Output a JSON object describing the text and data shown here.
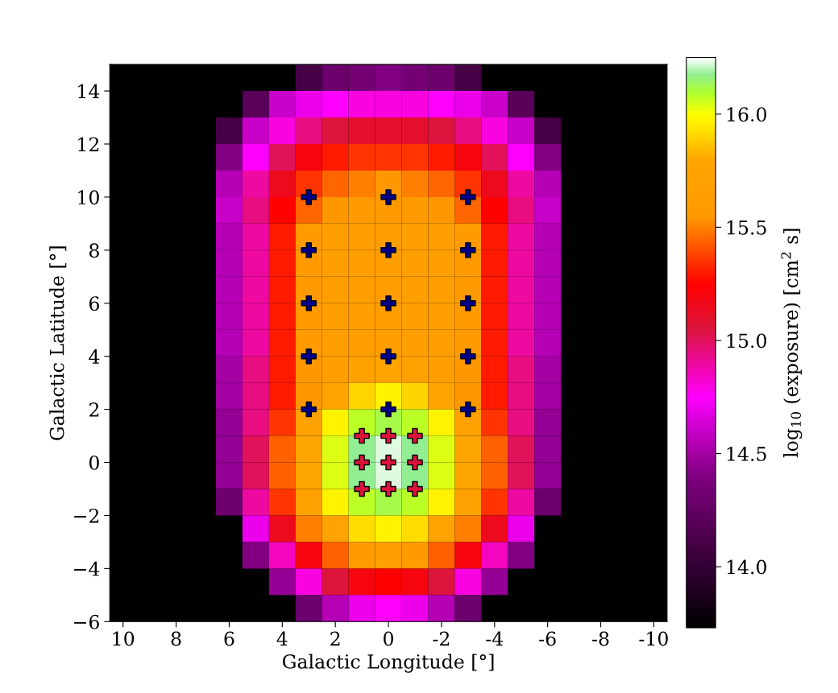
{
  "chart_data": {
    "type": "heatmap",
    "xlabel": "Galactic Longitude [°]",
    "ylabel": "Galactic Latitude [°]",
    "clabel": "log$_{10}$ (exposure) [cm$^{2}$ s]",
    "x": [
      10,
      9,
      8,
      7,
      6,
      5,
      4,
      3,
      2,
      1,
      0,
      -1,
      -2,
      -3,
      -4,
      -5,
      -6,
      -7,
      -8,
      -9,
      -10
    ],
    "y": [
      14.5,
      13.5,
      12.5,
      11.5,
      10.5,
      9.5,
      8.5,
      7.5,
      6.5,
      5.5,
      4.5,
      3.5,
      2.5,
      1.5,
      0.5,
      -0.5,
      -1.5,
      -2.5,
      -3.5,
      -4.5,
      -5.5
    ],
    "cells": [
      [
        null,
        null,
        null,
        null,
        null,
        null,
        null,
        14.1,
        14.3,
        14.35,
        14.4,
        14.35,
        14.3,
        14.1,
        null,
        null,
        null,
        null,
        null,
        null,
        null
      ],
      [
        null,
        null,
        null,
        null,
        null,
        14.2,
        14.6,
        14.7,
        14.75,
        14.8,
        14.8,
        14.8,
        14.75,
        14.7,
        14.6,
        14.2,
        null,
        null,
        null,
        null,
        null
      ],
      [
        null,
        null,
        null,
        null,
        14.1,
        14.6,
        14.8,
        14.95,
        15.05,
        15.1,
        15.1,
        15.1,
        15.05,
        14.95,
        14.8,
        14.6,
        14.1,
        null,
        null,
        null,
        null
      ],
      [
        null,
        null,
        null,
        null,
        14.4,
        14.75,
        15.0,
        15.2,
        15.3,
        15.35,
        15.35,
        15.35,
        15.3,
        15.2,
        15.0,
        14.75,
        14.4,
        null,
        null,
        null,
        null
      ],
      [
        null,
        null,
        null,
        null,
        14.55,
        14.9,
        15.15,
        15.35,
        15.45,
        15.5,
        15.55,
        15.5,
        15.45,
        15.35,
        15.15,
        14.9,
        14.55,
        null,
        null,
        null,
        null
      ],
      [
        null,
        null,
        null,
        null,
        14.6,
        14.95,
        15.25,
        15.45,
        15.55,
        15.6,
        15.6,
        15.6,
        15.55,
        15.45,
        15.25,
        14.95,
        14.6,
        null,
        null,
        null,
        null
      ],
      [
        null,
        null,
        null,
        null,
        14.55,
        14.9,
        15.3,
        15.6,
        15.65,
        15.65,
        15.65,
        15.65,
        15.65,
        15.6,
        15.3,
        14.9,
        14.55,
        null,
        null,
        null,
        null
      ],
      [
        null,
        null,
        null,
        null,
        14.55,
        14.9,
        15.3,
        15.6,
        15.65,
        15.65,
        15.65,
        15.65,
        15.65,
        15.6,
        15.3,
        14.9,
        14.55,
        null,
        null,
        null,
        null
      ],
      [
        null,
        null,
        null,
        null,
        14.55,
        14.9,
        15.3,
        15.6,
        15.65,
        15.65,
        15.65,
        15.65,
        15.65,
        15.6,
        15.3,
        14.9,
        14.55,
        null,
        null,
        null,
        null
      ],
      [
        null,
        null,
        null,
        null,
        14.55,
        14.9,
        15.3,
        15.6,
        15.65,
        15.65,
        15.65,
        15.65,
        15.65,
        15.6,
        15.3,
        14.9,
        14.55,
        null,
        null,
        null,
        null
      ],
      [
        null,
        null,
        null,
        null,
        14.55,
        14.9,
        15.3,
        15.6,
        15.65,
        15.65,
        15.65,
        15.65,
        15.65,
        15.6,
        15.3,
        14.9,
        14.55,
        null,
        null,
        null,
        null
      ],
      [
        null,
        null,
        null,
        null,
        14.5,
        14.95,
        15.3,
        15.55,
        15.65,
        15.7,
        15.75,
        15.7,
        15.65,
        15.55,
        15.3,
        14.95,
        14.5,
        null,
        null,
        null,
        null
      ],
      [
        null,
        null,
        null,
        null,
        14.5,
        14.95,
        15.3,
        15.55,
        15.75,
        15.9,
        15.97,
        15.9,
        15.75,
        15.55,
        15.3,
        14.95,
        14.5,
        null,
        null,
        null,
        null
      ],
      [
        null,
        null,
        null,
        null,
        14.45,
        14.95,
        15.35,
        15.7,
        15.97,
        16.08,
        16.12,
        16.08,
        15.97,
        15.7,
        15.35,
        14.95,
        14.45,
        null,
        null,
        null,
        null
      ],
      [
        null,
        null,
        null,
        null,
        14.45,
        15.0,
        15.44,
        15.79,
        16.04,
        16.18,
        16.23,
        16.18,
        16.04,
        15.79,
        15.44,
        15.0,
        14.45,
        null,
        null,
        null,
        null
      ],
      [
        null,
        null,
        null,
        null,
        14.45,
        15.0,
        15.44,
        15.79,
        16.04,
        16.18,
        16.23,
        16.18,
        16.04,
        15.79,
        15.44,
        15.0,
        14.45,
        null,
        null,
        null,
        null
      ],
      [
        null,
        null,
        null,
        null,
        14.3,
        14.9,
        15.35,
        15.7,
        15.97,
        16.08,
        16.12,
        16.08,
        15.97,
        15.7,
        15.35,
        14.9,
        14.3,
        null,
        null,
        null,
        null
      ],
      [
        null,
        null,
        null,
        null,
        null,
        14.7,
        15.15,
        15.5,
        15.75,
        15.92,
        15.97,
        15.92,
        15.75,
        15.5,
        15.15,
        14.7,
        null,
        null,
        null,
        null,
        null
      ],
      [
        null,
        null,
        null,
        null,
        null,
        14.4,
        14.85,
        15.2,
        15.44,
        15.6,
        15.65,
        15.6,
        15.44,
        15.2,
        14.85,
        14.4,
        null,
        null,
        null,
        null,
        null
      ],
      [
        null,
        null,
        null,
        null,
        null,
        null,
        14.45,
        14.8,
        15.05,
        15.2,
        15.25,
        15.2,
        15.05,
        14.8,
        14.45,
        null,
        null,
        null,
        null,
        null,
        null
      ],
      [
        null,
        null,
        null,
        null,
        null,
        null,
        null,
        14.3,
        14.55,
        14.7,
        14.75,
        14.7,
        14.55,
        14.3,
        null,
        null,
        null,
        null,
        null,
        null,
        null
      ]
    ],
    "clim": [
      13.73,
      16.25
    ],
    "cticks": [
      {
        "value": 14.0,
        "label": "14.0"
      },
      {
        "value": 14.5,
        "label": "14.5"
      },
      {
        "value": 15.0,
        "label": "15.0"
      },
      {
        "value": 15.5,
        "label": "15.5"
      },
      {
        "value": 16.0,
        "label": "16.0"
      }
    ],
    "xlim": [
      10.5,
      -10.5
    ],
    "ylim": [
      -6,
      15
    ],
    "xticks": [
      10,
      8,
      6,
      4,
      2,
      0,
      -2,
      -4,
      -6,
      -8,
      -10
    ],
    "yticks": [
      {
        "value": -6,
        "label": "−6"
      },
      {
        "value": -4,
        "label": "−4"
      },
      {
        "value": -2,
        "label": "−2"
      },
      0,
      2,
      4,
      6,
      8,
      10,
      12,
      14
    ],
    "grid": false,
    "series": [
      {
        "type": "scatter",
        "color": "#00008b",
        "marker": "cross",
        "x": [
          3,
          3,
          3,
          3,
          3,
          0,
          0,
          0,
          0,
          0,
          -3,
          -3,
          -3,
          -3,
          -3
        ],
        "values": [
          2,
          4,
          6,
          8,
          10,
          2,
          4,
          6,
          8,
          10,
          2,
          4,
          6,
          8,
          10
        ]
      },
      {
        "type": "scatter",
        "color": "#dc143c",
        "marker": "cross",
        "x": [
          1,
          1,
          1,
          0,
          0,
          0,
          -1,
          -1,
          -1
        ],
        "values": [
          1,
          0,
          -1,
          1,
          0,
          -1,
          1,
          0,
          -1
        ]
      }
    ]
  }
}
